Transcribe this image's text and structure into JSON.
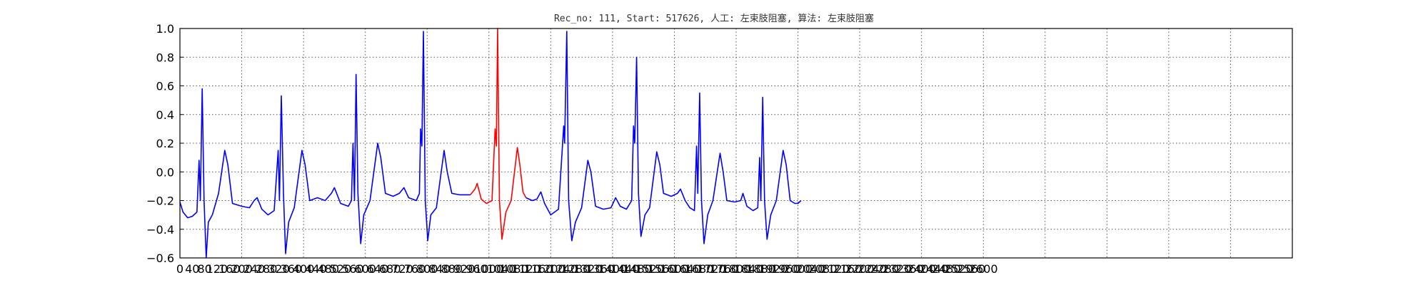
{
  "chart_data": {
    "type": "line",
    "title": "Rec_no: 111, Start: 517626, 人工: 左束肢阻塞, 算法: 左束肢阻塞",
    "xlabel": "",
    "ylabel": "",
    "xlim": [
      0,
      3600
    ],
    "ylim": [
      -0.6,
      1.0
    ],
    "grid": true,
    "y_ticks": [
      "1.0",
      "0.8",
      "0.6",
      "0.4",
      "0.2",
      "0.0",
      "−0.2",
      "−0.4",
      "−0.6"
    ],
    "x_ticks": [
      "0",
      "40",
      "80",
      "120",
      "160",
      "200",
      "240",
      "280",
      "320",
      "360",
      "400",
      "440",
      "480",
      "520",
      "560",
      "600",
      "640",
      "680",
      "720",
      "760",
      "800",
      "840",
      "880",
      "920",
      "960",
      "1000",
      "1040",
      "1080",
      "1120",
      "1160",
      "1200",
      "1240",
      "1280",
      "1320",
      "1360",
      "1400",
      "1440",
      "1480",
      "1520",
      "1560",
      "1600",
      "1640",
      "1680",
      "1720",
      "1760",
      "1800",
      "1840",
      "1880",
      "1920",
      "1960",
      "2000",
      "2040",
      "2080",
      "2120",
      "2160",
      "2200",
      "2240",
      "2280",
      "2320",
      "2360",
      "2400",
      "2440",
      "2480",
      "2520",
      "2560",
      "2600"
    ],
    "series": [
      {
        "color": "#0000ff",
        "points": [
          [
            0,
            -0.21
          ],
          [
            10,
            -0.28
          ],
          [
            25,
            -0.32
          ],
          [
            40,
            -0.31
          ],
          [
            55,
            -0.28
          ],
          [
            62,
            0.08
          ],
          [
            66,
            -0.2
          ],
          [
            72,
            0.58
          ],
          [
            78,
            -0.2
          ],
          [
            85,
            -0.6
          ],
          [
            92,
            -0.35
          ],
          [
            105,
            -0.3
          ],
          [
            125,
            -0.15
          ],
          [
            145,
            0.15
          ],
          [
            155,
            0.05
          ],
          [
            170,
            -0.22
          ],
          [
            200,
            -0.24
          ],
          [
            225,
            -0.25
          ],
          [
            240,
            -0.2
          ],
          [
            250,
            -0.18
          ],
          [
            265,
            -0.26
          ],
          [
            285,
            -0.3
          ],
          [
            305,
            -0.27
          ],
          [
            318,
            0.15
          ],
          [
            322,
            -0.2
          ],
          [
            328,
            0.53
          ],
          [
            335,
            -0.15
          ],
          [
            342,
            -0.57
          ],
          [
            352,
            -0.35
          ],
          [
            370,
            -0.25
          ],
          [
            395,
            0.15
          ],
          [
            405,
            0.05
          ],
          [
            420,
            -0.2
          ],
          [
            445,
            -0.18
          ],
          [
            470,
            -0.2
          ],
          [
            490,
            -0.15
          ],
          [
            500,
            -0.11
          ],
          [
            520,
            -0.22
          ],
          [
            545,
            -0.24
          ],
          [
            555,
            -0.2
          ],
          [
            560,
            0.2
          ],
          [
            565,
            -0.2
          ],
          [
            570,
            0.68
          ],
          [
            576,
            -0.15
          ],
          [
            585,
            -0.5
          ],
          [
            595,
            -0.3
          ],
          [
            615,
            -0.2
          ],
          [
            640,
            0.2
          ],
          [
            650,
            0.1
          ],
          [
            665,
            -0.15
          ],
          [
            690,
            -0.17
          ],
          [
            710,
            -0.15
          ],
          [
            725,
            -0.11
          ],
          [
            740,
            -0.18
          ],
          [
            765,
            -0.2
          ],
          [
            775,
            -0.15
          ],
          [
            779,
            0.3
          ],
          [
            783,
            0.18
          ],
          [
            788,
            0.98
          ],
          [
            794,
            -0.2
          ],
          [
            802,
            -0.48
          ],
          [
            812,
            -0.3
          ],
          [
            830,
            -0.25
          ],
          [
            855,
            0.15
          ],
          [
            865,
            0.0
          ],
          [
            880,
            -0.15
          ],
          [
            905,
            -0.16
          ],
          [
            925,
            -0.16
          ],
          [
            940,
            -0.16
          ]
        ]
      },
      {
        "color": "#ff0000",
        "points": [
          [
            940,
            -0.16
          ],
          [
            955,
            -0.12
          ],
          [
            962,
            -0.08
          ],
          [
            975,
            -0.19
          ],
          [
            992,
            -0.22
          ],
          [
            1010,
            -0.2
          ],
          [
            1020,
            0.3
          ],
          [
            1024,
            0.18
          ],
          [
            1028,
            1.0
          ],
          [
            1034,
            -0.2
          ],
          [
            1042,
            -0.47
          ],
          [
            1055,
            -0.28
          ],
          [
            1072,
            -0.2
          ],
          [
            1092,
            0.17
          ],
          [
            1100,
            0.05
          ],
          [
            1110,
            -0.14
          ],
          [
            1120,
            -0.18
          ]
        ]
      },
      {
        "color": "#0000ff",
        "points": [
          [
            1120,
            -0.18
          ],
          [
            1140,
            -0.2
          ],
          [
            1155,
            -0.19
          ],
          [
            1168,
            -0.14
          ],
          [
            1180,
            -0.22
          ],
          [
            1200,
            -0.3
          ],
          [
            1225,
            -0.26
          ],
          [
            1242,
            0.32
          ],
          [
            1245,
            0.2
          ],
          [
            1252,
            0.98
          ],
          [
            1258,
            -0.2
          ],
          [
            1268,
            -0.48
          ],
          [
            1280,
            -0.35
          ],
          [
            1300,
            -0.25
          ],
          [
            1320,
            0.08
          ],
          [
            1330,
            0.0
          ],
          [
            1345,
            -0.24
          ],
          [
            1370,
            -0.26
          ],
          [
            1395,
            -0.25
          ],
          [
            1410,
            -0.18
          ],
          [
            1425,
            -0.24
          ],
          [
            1445,
            -0.26
          ],
          [
            1462,
            -0.2
          ],
          [
            1468,
            0.32
          ],
          [
            1472,
            0.2
          ],
          [
            1478,
            0.8
          ],
          [
            1484,
            -0.15
          ],
          [
            1492,
            -0.45
          ],
          [
            1505,
            -0.3
          ],
          [
            1520,
            -0.25
          ],
          [
            1543,
            0.14
          ],
          [
            1553,
            0.05
          ],
          [
            1565,
            -0.15
          ],
          [
            1590,
            -0.17
          ],
          [
            1610,
            -0.15
          ],
          [
            1620,
            -0.12
          ],
          [
            1635,
            -0.2
          ],
          [
            1650,
            -0.25
          ],
          [
            1665,
            -0.27
          ],
          [
            1672,
            0.18
          ],
          [
            1676,
            -0.15
          ],
          [
            1682,
            0.55
          ],
          [
            1688,
            -0.2
          ],
          [
            1696,
            -0.5
          ],
          [
            1708,
            -0.3
          ],
          [
            1725,
            -0.2
          ],
          [
            1748,
            0.13
          ],
          [
            1758,
            0.0
          ],
          [
            1770,
            -0.2
          ],
          [
            1795,
            -0.21
          ],
          [
            1815,
            -0.2
          ],
          [
            1822,
            -0.15
          ],
          [
            1835,
            -0.24
          ],
          [
            1855,
            -0.27
          ],
          [
            1870,
            -0.25
          ],
          [
            1876,
            0.1
          ],
          [
            1880,
            -0.2
          ],
          [
            1886,
            0.52
          ],
          [
            1892,
            -0.2
          ],
          [
            1900,
            -0.47
          ],
          [
            1912,
            -0.3
          ],
          [
            1930,
            -0.2
          ],
          [
            1952,
            0.15
          ],
          [
            1962,
            0.05
          ],
          [
            1975,
            -0.2
          ],
          [
            1990,
            -0.22
          ],
          [
            2000,
            -0.22
          ],
          [
            2010,
            -0.2
          ]
        ]
      }
    ]
  }
}
